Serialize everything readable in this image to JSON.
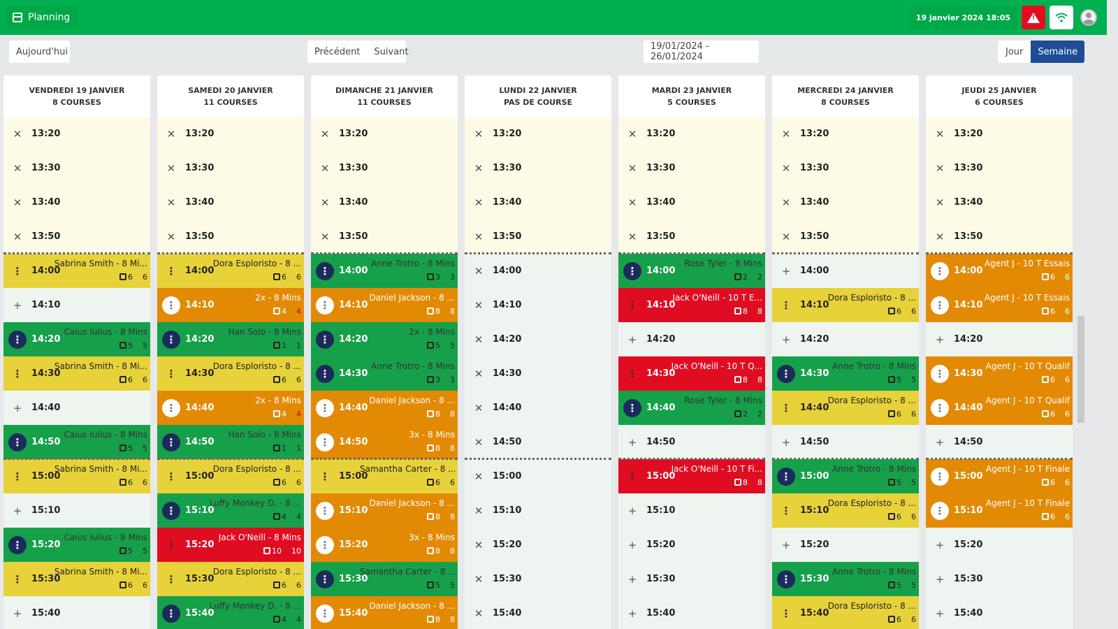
{
  "topbar": {
    "planning_label": "Planning",
    "datetime": "19 janvier 2024 18:05",
    "icons": [
      "calendar-icon",
      "alert-icon",
      "wifi-icon",
      "user-avatar-icon"
    ]
  },
  "toolbar": {
    "today_label": "Aujourd'hui",
    "prev_label": "Précédent",
    "next_label": "Suivant",
    "date_range": "19/01/2024 - 26/01/2024",
    "view_day_label": "Jour",
    "view_week_label": "Semaine"
  },
  "colors": {
    "brand_green": "#00b050",
    "event_yellow": "#e7d23a",
    "event_orange": "#e38a05",
    "event_green": "#17a04a",
    "event_red": "#e00d22",
    "closed_bg": "#fdfbe6",
    "open_bg": "#eef5f1",
    "active_view": "#1e4d96"
  },
  "days": [
    {
      "title": "VENDREDI 19 JANVIER",
      "subtitle": "8 COURSES",
      "slots": [
        {
          "time": "13:20",
          "type": "closed"
        },
        {
          "time": "13:30",
          "type": "closed"
        },
        {
          "time": "13:40",
          "type": "closed"
        },
        {
          "time": "13:50",
          "type": "closed"
        },
        {
          "time": "14:00",
          "type": "event",
          "color": "yellow",
          "name": "Sabrina Smith - 8 Mi...",
          "seats": "6",
          "count": "6"
        },
        {
          "time": "14:10",
          "type": "open"
        },
        {
          "time": "14:20",
          "type": "event",
          "color": "green",
          "name": "Caius Iulius - 8 Mins",
          "seats": "5",
          "count": "5"
        },
        {
          "time": "14:30",
          "type": "event",
          "color": "yellow",
          "name": "Sabrina Smith - 8 Mi...",
          "seats": "6",
          "count": "6"
        },
        {
          "time": "14:40",
          "type": "open"
        },
        {
          "time": "14:50",
          "type": "event",
          "color": "green",
          "name": "Caius Iulius - 8 Mins",
          "seats": "5",
          "count": "5"
        },
        {
          "time": "15:00",
          "type": "event",
          "color": "yellow",
          "name": "Sabrina Smith - 8 Mi...",
          "seats": "6",
          "count": "6"
        },
        {
          "time": "15:10",
          "type": "open"
        },
        {
          "time": "15:20",
          "type": "event",
          "color": "green",
          "name": "Caius Iulius - 8 Mins",
          "seats": "5",
          "count": "5"
        },
        {
          "time": "15:30",
          "type": "event",
          "color": "yellow",
          "name": "Sabrina Smith - 8 Mi...",
          "seats": "6",
          "count": "6"
        },
        {
          "time": "15:40",
          "type": "open"
        }
      ]
    },
    {
      "title": "SAMEDI 20 JANVIER",
      "subtitle": "11 COURSES",
      "slots": [
        {
          "time": "13:20",
          "type": "closed"
        },
        {
          "time": "13:30",
          "type": "closed"
        },
        {
          "time": "13:40",
          "type": "closed"
        },
        {
          "time": "13:50",
          "type": "closed"
        },
        {
          "time": "14:00",
          "type": "event",
          "color": "yellow",
          "name": "Dora Esploristo - 8 ...",
          "seats": "6",
          "count": "6"
        },
        {
          "time": "14:10",
          "type": "event",
          "color": "orange",
          "name": "2x - 8 Mins",
          "seats": "4",
          "count": "4"
        },
        {
          "time": "14:20",
          "type": "event",
          "color": "green",
          "name": "Han Solo - 8 Mins",
          "seats": "1",
          "count": "1"
        },
        {
          "time": "14:30",
          "type": "event",
          "color": "yellow",
          "name": "Dora Esploristo - 8 ...",
          "seats": "6",
          "count": "6"
        },
        {
          "time": "14:40",
          "type": "event",
          "color": "orange",
          "name": "2x - 8 Mins",
          "seats": "4",
          "count": "4"
        },
        {
          "time": "14:50",
          "type": "event",
          "color": "green",
          "name": "Han Solo - 8 Mins",
          "seats": "1",
          "count": "1"
        },
        {
          "time": "15:00",
          "type": "event",
          "color": "yellow",
          "name": "Dora Esploristo - 8 ...",
          "seats": "6",
          "count": "6"
        },
        {
          "time": "15:10",
          "type": "event",
          "color": "green",
          "name": "Luffy Monkey D. - 8 ...",
          "seats": "4",
          "count": "4"
        },
        {
          "time": "15:20",
          "type": "event",
          "color": "red",
          "name": "Jack O'Neill - 8 Mins",
          "seats": "10",
          "count": "10"
        },
        {
          "time": "15:30",
          "type": "event",
          "color": "yellow",
          "name": "Dora Esploristo - 8 ...",
          "seats": "6",
          "count": "6"
        },
        {
          "time": "15:40",
          "type": "event",
          "color": "green",
          "name": "Luffy Monkey D. - 8 ...",
          "seats": "4",
          "count": "4"
        }
      ]
    },
    {
      "title": "DIMANCHE 21 JANVIER",
      "subtitle": "11 COURSES",
      "slots": [
        {
          "time": "13:20",
          "type": "closed"
        },
        {
          "time": "13:30",
          "type": "closed"
        },
        {
          "time": "13:40",
          "type": "closed"
        },
        {
          "time": "13:50",
          "type": "closed"
        },
        {
          "time": "14:00",
          "type": "event",
          "color": "green",
          "name": "Anne Trotro - 8 Mins",
          "seats": "3",
          "count": "3"
        },
        {
          "time": "14:10",
          "type": "event",
          "color": "orange",
          "name": "Daniel Jackson - 8 ...",
          "seats": "8",
          "count": "8"
        },
        {
          "time": "14:20",
          "type": "event",
          "color": "green",
          "name": "2x - 8 Mins",
          "seats": "5",
          "count": "5"
        },
        {
          "time": "14:30",
          "type": "event",
          "color": "green",
          "name": "Anne Trotro - 8 Mins",
          "seats": "3",
          "count": "3"
        },
        {
          "time": "14:40",
          "type": "event",
          "color": "orange",
          "name": "Daniel Jackson - 8 ...",
          "seats": "8",
          "count": "8"
        },
        {
          "time": "14:50",
          "type": "event",
          "color": "orange",
          "name": "3x - 8 Mins",
          "seats": "8",
          "count": "8"
        },
        {
          "time": "15:00",
          "type": "event",
          "color": "yellow",
          "name": "Samantha Carter - 8 ...",
          "seats": "6",
          "count": "6"
        },
        {
          "time": "15:10",
          "type": "event",
          "color": "orange",
          "name": "Daniel Jackson - 8 ...",
          "seats": "8",
          "count": "8"
        },
        {
          "time": "15:20",
          "type": "event",
          "color": "orange",
          "name": "3x - 8 Mins",
          "seats": "8",
          "count": "8"
        },
        {
          "time": "15:30",
          "type": "event",
          "color": "green",
          "name": "Samantha Carter - 8 ...",
          "seats": "5",
          "count": "5"
        },
        {
          "time": "15:40",
          "type": "event",
          "color": "orange",
          "name": "Daniel Jackson - 8 ...",
          "seats": "8",
          "count": "8"
        }
      ]
    },
    {
      "title": "LUNDI 22 JANVIER",
      "subtitle": "PAS DE COURSE",
      "slots": [
        {
          "time": "13:20",
          "type": "closed"
        },
        {
          "time": "13:30",
          "type": "closed"
        },
        {
          "time": "13:40",
          "type": "closed"
        },
        {
          "time": "13:50",
          "type": "closed"
        },
        {
          "time": "14:00",
          "type": "openx"
        },
        {
          "time": "14:10",
          "type": "openx"
        },
        {
          "time": "14:20",
          "type": "openx"
        },
        {
          "time": "14:30",
          "type": "openx"
        },
        {
          "time": "14:40",
          "type": "openx"
        },
        {
          "time": "14:50",
          "type": "openx"
        },
        {
          "time": "15:00",
          "type": "openx"
        },
        {
          "time": "15:10",
          "type": "openx"
        },
        {
          "time": "15:20",
          "type": "openx"
        },
        {
          "time": "15:30",
          "type": "openx"
        },
        {
          "time": "15:40",
          "type": "openx"
        }
      ]
    },
    {
      "title": "MARDI 23 JANVIER",
      "subtitle": "5 COURSES",
      "slots": [
        {
          "time": "13:20",
          "type": "closed"
        },
        {
          "time": "13:30",
          "type": "closed"
        },
        {
          "time": "13:40",
          "type": "closed"
        },
        {
          "time": "13:50",
          "type": "closed"
        },
        {
          "time": "14:00",
          "type": "event",
          "color": "green",
          "name": "Rose Tyler - 8 Mins",
          "seats": "2",
          "count": "2"
        },
        {
          "time": "14:10",
          "type": "event",
          "color": "red",
          "name": "Jack O'Neill - 10 T E...",
          "seats": "8",
          "count": "8"
        },
        {
          "time": "14:20",
          "type": "open"
        },
        {
          "time": "14:30",
          "type": "event",
          "color": "red",
          "name": "Jack O'Neill - 10 T Q...",
          "seats": "8",
          "count": "8"
        },
        {
          "time": "14:40",
          "type": "event",
          "color": "green",
          "name": "Rose Tyler - 8 Mins",
          "seats": "2",
          "count": "2"
        },
        {
          "time": "14:50",
          "type": "open"
        },
        {
          "time": "15:00",
          "type": "event",
          "color": "red",
          "name": "Jack O'Neill - 10 T Fi...",
          "seats": "8",
          "count": "8"
        },
        {
          "time": "15:10",
          "type": "open"
        },
        {
          "time": "15:20",
          "type": "open"
        },
        {
          "time": "15:30",
          "type": "open"
        },
        {
          "time": "15:40",
          "type": "open"
        }
      ]
    },
    {
      "title": "MERCREDI 24 JANVIER",
      "subtitle": "8 COURSES",
      "slots": [
        {
          "time": "13:20",
          "type": "closed"
        },
        {
          "time": "13:30",
          "type": "closed"
        },
        {
          "time": "13:40",
          "type": "closed"
        },
        {
          "time": "13:50",
          "type": "closed"
        },
        {
          "time": "14:00",
          "type": "open"
        },
        {
          "time": "14:10",
          "type": "event",
          "color": "yellow",
          "name": "Dora Esploristo - 8 ...",
          "seats": "6",
          "count": "6"
        },
        {
          "time": "14:20",
          "type": "open"
        },
        {
          "time": "14:30",
          "type": "event",
          "color": "green",
          "name": "Anne Trotro - 8 Mins",
          "seats": "5",
          "count": "5"
        },
        {
          "time": "14:40",
          "type": "event",
          "color": "yellow",
          "name": "Dora Esploristo - 8 ...",
          "seats": "6",
          "count": "6"
        },
        {
          "time": "14:50",
          "type": "open"
        },
        {
          "time": "15:00",
          "type": "event",
          "color": "green",
          "name": "Anne Trotro - 8 Mins",
          "seats": "5",
          "count": "5"
        },
        {
          "time": "15:10",
          "type": "event",
          "color": "yellow",
          "name": "Dora Esploristo - 8 ...",
          "seats": "6",
          "count": "6"
        },
        {
          "time": "15:20",
          "type": "open"
        },
        {
          "time": "15:30",
          "type": "event",
          "color": "green",
          "name": "Anne Trotro - 8 Mins",
          "seats": "5",
          "count": "5"
        },
        {
          "time": "15:40",
          "type": "event",
          "color": "yellow",
          "name": "Dora Esploristo - 8 ...",
          "seats": "6",
          "count": "6"
        }
      ]
    },
    {
      "title": "JEUDI 25 JANVIER",
      "subtitle": "6 COURSES",
      "slots": [
        {
          "time": "13:20",
          "type": "closed"
        },
        {
          "time": "13:30",
          "type": "closed"
        },
        {
          "time": "13:40",
          "type": "closed"
        },
        {
          "time": "13:50",
          "type": "closed"
        },
        {
          "time": "14:00",
          "type": "event",
          "color": "orange",
          "name": "Agent J - 10 T Essais",
          "seats": "6",
          "count": "6"
        },
        {
          "time": "14:10",
          "type": "event",
          "color": "orange",
          "name": "Agent J - 10 T Essais",
          "seats": "6",
          "count": "6"
        },
        {
          "time": "14:20",
          "type": "open"
        },
        {
          "time": "14:30",
          "type": "event",
          "color": "orange",
          "name": "Agent J - 10 T Qualif",
          "seats": "6",
          "count": "6"
        },
        {
          "time": "14:40",
          "type": "event",
          "color": "orange",
          "name": "Agent J - 10 T Qualif",
          "seats": "6",
          "count": "6"
        },
        {
          "time": "14:50",
          "type": "open"
        },
        {
          "time": "15:00",
          "type": "event",
          "color": "orange",
          "name": "Agent J - 10 T Finale",
          "seats": "6",
          "count": "6"
        },
        {
          "time": "15:10",
          "type": "event",
          "color": "orange",
          "name": "Agent J - 10 T Finale",
          "seats": "6",
          "count": "6"
        },
        {
          "time": "15:20",
          "type": "open"
        },
        {
          "time": "15:30",
          "type": "open"
        },
        {
          "time": "15:40",
          "type": "open"
        }
      ]
    }
  ]
}
